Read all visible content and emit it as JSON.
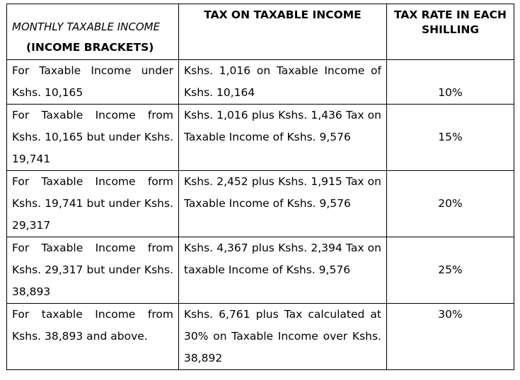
{
  "header": {
    "col1_line1": "MONTHLY TAXABLE INCOME",
    "col1_line2": "(INCOME BRACKETS)",
    "col2": "TAX ON TAXABLE INCOME",
    "col3": "TAX RATE IN EACH SHILLING"
  },
  "rows": [
    {
      "bracket": "For Taxable Income under Kshs. 10,165",
      "tax": "Kshs. 1,016 on Taxable Income of Kshs. 10,164",
      "rate": "10%"
    },
    {
      "bracket": "For Taxable Income from Kshs. 10,165 but under Kshs. 19,741",
      "tax": "Kshs. 1,016 plus Kshs. 1,436 Tax on Taxable Income of Kshs. 9,576",
      "rate": "15%"
    },
    {
      "bracket": "For Taxable Income form Kshs. 19,741 but under Kshs. 29,317",
      "tax": "Kshs. 2,452 plus Kshs. 1,915 Tax on Taxable Income of Kshs. 9,576",
      "rate": "20%"
    },
    {
      "bracket": "For Taxable Income from Kshs. 29,317 but under Kshs. 38,893",
      "tax": "Kshs. 4,367 plus Kshs. 2,394 Tax on taxable Income of  Kshs. 9,576",
      "rate": "25%"
    },
    {
      "bracket": "For taxable Income from Kshs. 38,893 and above.",
      "tax": "Kshs. 6,761 plus Tax calculated at 30% on Taxable Income over Kshs. 38,892",
      "rate": "30%"
    }
  ]
}
